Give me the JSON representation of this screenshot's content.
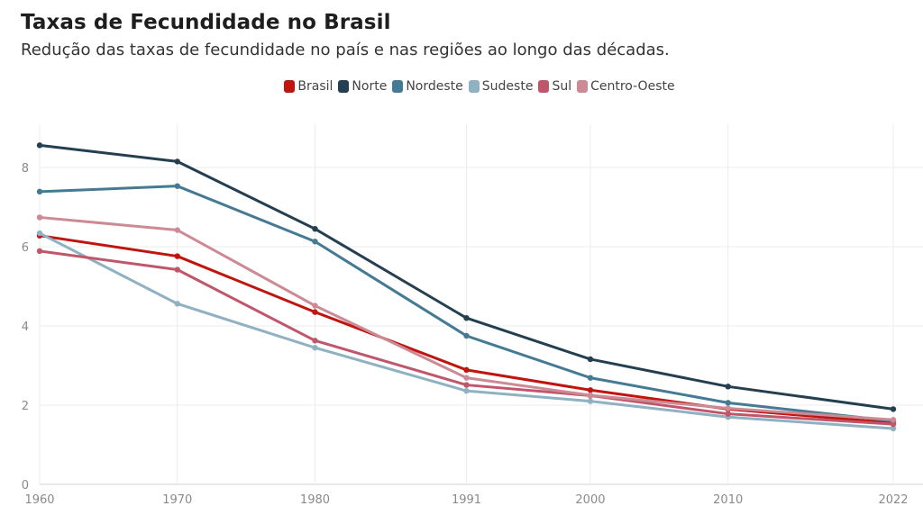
{
  "title": "Taxas de Fecundidade no Brasil",
  "subtitle": "Redução das taxas de fecundidade no país e nas regiões ao longo das décadas.",
  "chart_data": {
    "type": "line",
    "x": [
      1960,
      1970,
      1980,
      1991,
      2000,
      2010,
      2022
    ],
    "x_tick_labels": [
      "1960",
      "1970",
      "1980",
      "1991",
      "2000",
      "2010",
      "2022"
    ],
    "y_ticks": [
      0,
      2,
      4,
      6,
      8
    ],
    "ylim": [
      0,
      9
    ],
    "grid": true,
    "legend_position": "top-center",
    "series": [
      {
        "name": "Brasil",
        "color": "#c0140f",
        "values": [
          6.28,
          5.76,
          4.35,
          2.89,
          2.38,
          1.9,
          1.55
        ]
      },
      {
        "name": "Norte",
        "color": "#243f4f",
        "values": [
          8.56,
          8.15,
          6.45,
          4.2,
          3.16,
          2.47,
          1.9
        ]
      },
      {
        "name": "Nordeste",
        "color": "#447a93",
        "values": [
          7.39,
          7.53,
          6.13,
          3.75,
          2.69,
          2.06,
          1.6
        ]
      },
      {
        "name": "Sudeste",
        "color": "#8fb1c1",
        "values": [
          6.34,
          4.56,
          3.45,
          2.36,
          2.1,
          1.7,
          1.41
        ]
      },
      {
        "name": "Sul",
        "color": "#c0566b",
        "values": [
          5.89,
          5.42,
          3.63,
          2.51,
          2.24,
          1.78,
          1.52
        ]
      },
      {
        "name": "Centro-Oeste",
        "color": "#cc8a95",
        "values": [
          6.74,
          6.42,
          4.51,
          2.69,
          2.25,
          1.92,
          1.63
        ]
      }
    ]
  }
}
